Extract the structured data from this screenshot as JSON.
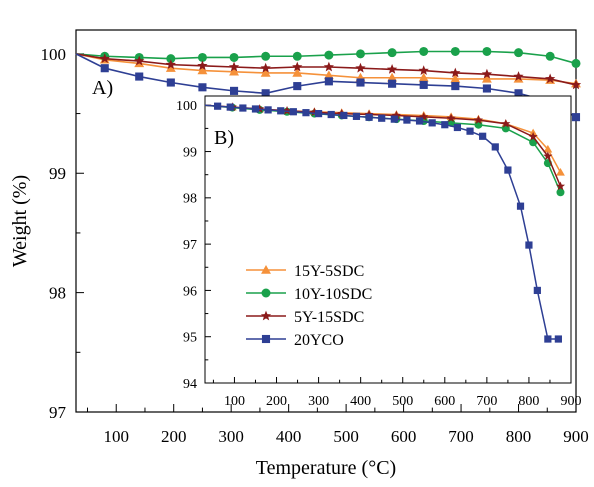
{
  "chart_data": [
    {
      "panel": "main",
      "panel_label": "A)",
      "type": "line",
      "xlabel": "Temperature (°C)",
      "ylabel": "Weight (%)",
      "xlim": [
        30,
        900
      ],
      "ylim": [
        97,
        100.2
      ],
      "xticks": [
        100,
        200,
        300,
        400,
        500,
        600,
        700,
        800,
        900
      ],
      "yticks": [
        97,
        98,
        99,
        100
      ],
      "series": [
        {
          "name": "15Y-5SDC",
          "color": "#f5913a",
          "marker": "triangle",
          "x": [
            30,
            80,
            140,
            195,
            250,
            305,
            360,
            415,
            470,
            525,
            580,
            635,
            690,
            745,
            800,
            855,
            900
          ],
          "y": [
            100,
            99.95,
            99.92,
            99.88,
            99.86,
            99.85,
            99.84,
            99.84,
            99.82,
            99.8,
            99.8,
            99.8,
            99.79,
            99.79,
            99.79,
            99.78,
            99.75
          ]
        },
        {
          "name": "10Y-10SDC",
          "color": "#1aa14b",
          "marker": "circle",
          "x": [
            30,
            80,
            140,
            195,
            250,
            305,
            360,
            415,
            470,
            525,
            580,
            635,
            690,
            745,
            800,
            855,
            900
          ],
          "y": [
            100,
            99.98,
            99.97,
            99.96,
            99.97,
            99.97,
            99.98,
            99.98,
            99.99,
            100.0,
            100.01,
            100.02,
            100.02,
            100.02,
            100.01,
            99.98,
            99.92
          ]
        },
        {
          "name": "5Y-15SDC",
          "color": "#8b1a1a",
          "marker": "star",
          "x": [
            30,
            80,
            140,
            195,
            250,
            305,
            360,
            415,
            470,
            525,
            580,
            635,
            690,
            745,
            800,
            855,
            900
          ],
          "y": [
            100,
            99.96,
            99.94,
            99.91,
            99.9,
            99.89,
            99.88,
            99.89,
            99.89,
            99.88,
            99.87,
            99.86,
            99.84,
            99.83,
            99.81,
            99.79,
            99.74
          ]
        },
        {
          "name": "20YCO",
          "color": "#2e3f94",
          "marker": "square",
          "x": [
            30,
            80,
            140,
            195,
            250,
            305,
            360,
            415,
            470,
            525,
            580,
            635,
            690,
            745,
            800,
            855,
            900
          ],
          "y": [
            100,
            99.88,
            99.81,
            99.76,
            99.72,
            99.69,
            99.67,
            99.73,
            99.77,
            99.76,
            99.75,
            99.74,
            99.73,
            99.71,
            99.67,
            99.6,
            99.47
          ]
        }
      ]
    },
    {
      "panel": "inset",
      "panel_label": "B)",
      "type": "line",
      "xlim": [
        30,
        900
      ],
      "ylim": [
        94,
        100.2
      ],
      "xticks": [
        100,
        200,
        300,
        400,
        500,
        600,
        700,
        800,
        900
      ],
      "yticks": [
        94,
        95,
        96,
        97,
        98,
        99,
        100
      ],
      "series": [
        {
          "name": "15Y-5SDC",
          "color": "#f5913a",
          "marker": "triangle",
          "x": [
            30,
            95,
            160,
            225,
            290,
            355,
            420,
            485,
            550,
            615,
            680,
            745,
            810,
            845,
            875
          ],
          "y": [
            100,
            99.96,
            99.92,
            99.88,
            99.86,
            99.84,
            99.82,
            99.8,
            99.78,
            99.75,
            99.7,
            99.6,
            99.4,
            99.05,
            98.55
          ]
        },
        {
          "name": "10Y-10SDC",
          "color": "#1aa14b",
          "marker": "circle",
          "x": [
            30,
            95,
            160,
            225,
            290,
            355,
            420,
            485,
            550,
            615,
            680,
            745,
            810,
            845,
            875
          ],
          "y": [
            100,
            99.95,
            99.9,
            99.86,
            99.82,
            99.78,
            99.74,
            99.7,
            99.66,
            99.62,
            99.58,
            99.5,
            99.2,
            98.75,
            98.12
          ]
        },
        {
          "name": "5Y-15SDC",
          "color": "#8b1a1a",
          "marker": "star",
          "x": [
            30,
            95,
            160,
            225,
            290,
            355,
            420,
            485,
            550,
            615,
            680,
            745,
            810,
            845,
            875
          ],
          "y": [
            100,
            99.96,
            99.92,
            99.88,
            99.85,
            99.82,
            99.8,
            99.78,
            99.75,
            99.72,
            99.68,
            99.6,
            99.32,
            98.9,
            98.25
          ]
        },
        {
          "name": "20YCO",
          "color": "#2e3f94",
          "marker": "square",
          "x": [
            30,
            60,
            90,
            120,
            150,
            180,
            210,
            240,
            270,
            300,
            330,
            360,
            390,
            420,
            450,
            480,
            510,
            540,
            570,
            600,
            630,
            660,
            690,
            720,
            750,
            780,
            800,
            820,
            845,
            870
          ],
          "y": [
            100,
            99.98,
            99.96,
            99.94,
            99.92,
            99.9,
            99.88,
            99.86,
            99.84,
            99.82,
            99.8,
            99.78,
            99.76,
            99.74,
            99.72,
            99.7,
            99.68,
            99.66,
            99.62,
            99.58,
            99.52,
            99.44,
            99.33,
            99.1,
            98.6,
            97.82,
            96.98,
            96.0,
            94.95,
            94.95
          ]
        }
      ],
      "legend": {
        "placement": "left",
        "entries": [
          "15Y-5SDC",
          "10Y-10SDC",
          "5Y-15SDC",
          "20YCO"
        ]
      }
    }
  ]
}
